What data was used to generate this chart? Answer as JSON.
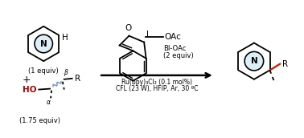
{
  "bg_color": "#ffffff",
  "N_color": "#000000",
  "HO_color": "#aa0000",
  "blue_color": "#7799bb",
  "red_bond_color": "#cc2200",
  "condition_text_1": "Ru(bpy)₃Cl₂ (0.1 mol%)",
  "condition_text_2": "CFL (23 W), HFIP, Ar, 30 ºC",
  "bi_oac_text": "BI-OAc",
  "bi_oac_equiv": "(2 equiv)",
  "reactant1_equiv": "(1 equiv)",
  "reactant2_equiv": "(1.75 equiv)",
  "plus_text": "+",
  "alpha_label": "α",
  "beta_label": "β",
  "R_label": "R",
  "H_label": "H",
  "N_label": "N",
  "HO_label": "HO",
  "OAc_label": "OAc",
  "I_label": "I",
  "O_label": "O"
}
